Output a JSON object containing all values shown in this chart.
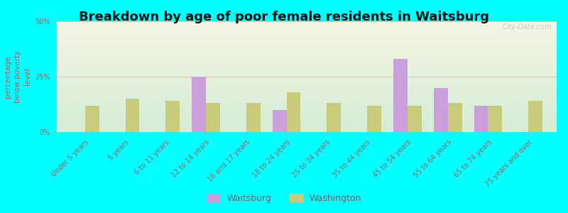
{
  "title": "Breakdown by age of poor female residents in Waitsburg",
  "ylabel": "percentage\nbelow poverty\nlevel",
  "categories": [
    "Under 5 years",
    "5 years",
    "6 to 11 years",
    "12 to 14 years",
    "16 and 17 years",
    "18 to 24 years",
    "25 to 34 years",
    "35 to 44 years",
    "45 to 54 years",
    "55 to 64 years",
    "65 to 74 years",
    "75 years and over"
  ],
  "waitsburg": [
    0,
    0,
    0,
    25,
    0,
    10,
    0,
    0,
    33,
    20,
    12,
    0
  ],
  "washington": [
    12,
    15,
    14,
    13,
    13,
    18,
    13,
    12,
    12,
    13,
    12,
    14
  ],
  "waitsburg_color": "#c9a0dc",
  "washington_color": "#c8cc7a",
  "background_color": "#00ffff",
  "plot_bg_top": "#f5f5e6",
  "plot_bg_bottom": "#d4edd4",
  "ylim": [
    0,
    50
  ],
  "ytick_labels": [
    "0%",
    "25%",
    "50%"
  ],
  "bar_width": 0.35,
  "title_fontsize": 13,
  "axis_label_fontsize": 7.5,
  "tick_fontsize": 7,
  "legend_labels": [
    "Waitsburg",
    "Washington"
  ],
  "watermark": "City-Data.com"
}
